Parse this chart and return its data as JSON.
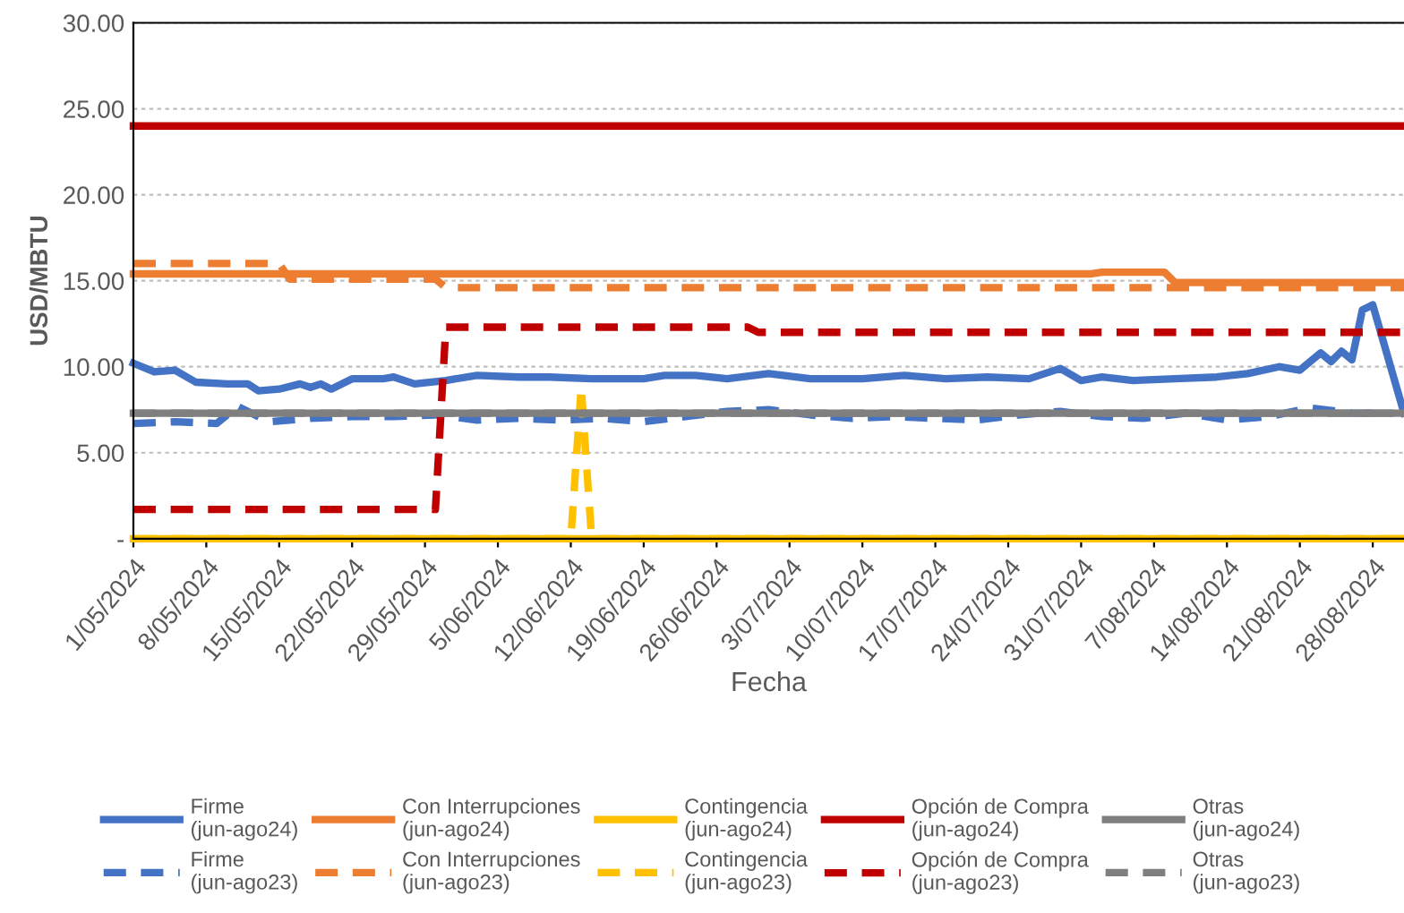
{
  "chart_data": {
    "type": "line",
    "xlabel": "Fecha",
    "ylabel": "USD/MBTU",
    "xlim": [
      "2024-05-01",
      "2024-08-31"
    ],
    "ylim": [
      0,
      30
    ],
    "xticks": [
      {
        "value": "2024-05-01",
        "label": "1/05/2024"
      },
      {
        "value": "2024-05-08",
        "label": "8/05/2024"
      },
      {
        "value": "2024-05-15",
        "label": "15/05/2024"
      },
      {
        "value": "2024-05-22",
        "label": "22/05/2024"
      },
      {
        "value": "2024-05-29",
        "label": "29/05/2024"
      },
      {
        "value": "2024-06-05",
        "label": "5/06/2024"
      },
      {
        "value": "2024-06-12",
        "label": "12/06/2024"
      },
      {
        "value": "2024-06-19",
        "label": "19/06/2024"
      },
      {
        "value": "2024-06-26",
        "label": "26/06/2024"
      },
      {
        "value": "2024-07-03",
        "label": "3/07/2024"
      },
      {
        "value": "2024-07-10",
        "label": "10/07/2024"
      },
      {
        "value": "2024-07-17",
        "label": "17/07/2024"
      },
      {
        "value": "2024-07-24",
        "label": "24/07/2024"
      },
      {
        "value": "2024-07-31",
        "label": "31/07/2024"
      },
      {
        "value": "2024-08-07",
        "label": "7/08/2024"
      },
      {
        "value": "2024-08-14",
        "label": "14/08/2024"
      },
      {
        "value": "2024-08-21",
        "label": "21/08/2024"
      },
      {
        "value": "2024-08-28",
        "label": "28/08/2024"
      }
    ],
    "yticks": [
      {
        "value": 0,
        "label": "-"
      },
      {
        "value": 5,
        "label": "5.00"
      },
      {
        "value": 10,
        "label": "10.00"
      },
      {
        "value": 15,
        "label": "15.00"
      },
      {
        "value": 20,
        "label": "20.00"
      },
      {
        "value": 25,
        "label": "25.00"
      },
      {
        "value": 30,
        "label": "30.00"
      }
    ],
    "grid": "y",
    "legend": "bottom",
    "marker": "none",
    "series": [
      {
        "name": "Firme\n(jun-ago24)",
        "color": "#4472c4",
        "line_style": "solid",
        "x": [
          "2024-05-01",
          "2024-05-03",
          "2024-05-05",
          "2024-05-07",
          "2024-05-10",
          "2024-05-12",
          "2024-05-13",
          "2024-05-15",
          "2024-05-17",
          "2024-05-18",
          "2024-05-19",
          "2024-05-20",
          "2024-05-22",
          "2024-05-25",
          "2024-05-26",
          "2024-05-28",
          "2024-05-31",
          "2024-06-03",
          "2024-06-07",
          "2024-06-10",
          "2024-06-14",
          "2024-06-19",
          "2024-06-21",
          "2024-06-24",
          "2024-06-27",
          "2024-07-01",
          "2024-07-05",
          "2024-07-10",
          "2024-07-14",
          "2024-07-18",
          "2024-07-22",
          "2024-07-26",
          "2024-07-29",
          "2024-07-31",
          "2024-08-02",
          "2024-08-05",
          "2024-08-09",
          "2024-08-13",
          "2024-08-16",
          "2024-08-19",
          "2024-08-21",
          "2024-08-23",
          "2024-08-24",
          "2024-08-25",
          "2024-08-26",
          "2024-08-27",
          "2024-08-28",
          "2024-08-31"
        ],
        "values": [
          10.2,
          9.7,
          9.8,
          9.1,
          9.0,
          9.0,
          8.6,
          8.7,
          9.0,
          8.8,
          9.0,
          8.7,
          9.3,
          9.3,
          9.4,
          9.0,
          9.2,
          9.5,
          9.4,
          9.4,
          9.3,
          9.3,
          9.5,
          9.5,
          9.3,
          9.6,
          9.3,
          9.3,
          9.5,
          9.3,
          9.4,
          9.3,
          9.9,
          9.2,
          9.4,
          9.2,
          9.3,
          9.4,
          9.6,
          10.0,
          9.8,
          10.8,
          10.3,
          10.9,
          10.4,
          13.3,
          13.6,
          7.3
        ]
      },
      {
        "name": "Firme\n(jun-ago23)",
        "color": "#4472c4",
        "line_style": "dashed",
        "x": [
          "2024-05-01",
          "2024-05-05",
          "2024-05-09",
          "2024-05-11",
          "2024-05-14",
          "2024-05-18",
          "2024-05-22",
          "2024-05-26",
          "2024-05-30",
          "2024-06-03",
          "2024-06-07",
          "2024-06-11",
          "2024-06-15",
          "2024-06-19",
          "2024-06-23",
          "2024-06-27",
          "2024-07-01",
          "2024-07-05",
          "2024-07-09",
          "2024-07-13",
          "2024-07-17",
          "2024-07-21",
          "2024-07-25",
          "2024-07-29",
          "2024-08-02",
          "2024-08-06",
          "2024-08-10",
          "2024-08-14",
          "2024-08-18",
          "2024-08-22",
          "2024-08-26",
          "2024-08-30"
        ],
        "values": [
          6.7,
          6.8,
          6.7,
          7.7,
          6.8,
          7.0,
          7.1,
          7.1,
          7.2,
          6.9,
          7.0,
          6.9,
          7.0,
          6.8,
          7.1,
          7.4,
          7.5,
          7.2,
          7.0,
          7.1,
          7.0,
          6.9,
          7.2,
          7.4,
          7.1,
          7.0,
          7.3,
          6.9,
          7.1,
          7.6,
          7.3,
          7.3
        ]
      },
      {
        "name": "Con Interrupciones\n(jun-ago24)",
        "color": "#ed7d31",
        "line_style": "solid",
        "x": [
          "2024-05-01",
          "2024-08-01",
          "2024-08-02",
          "2024-08-08",
          "2024-08-09",
          "2024-08-31"
        ],
        "values": [
          15.4,
          15.4,
          15.5,
          15.5,
          14.9,
          14.9
        ]
      },
      {
        "name": "Con Interrupciones\n(jun-ago23)",
        "color": "#ed7d31",
        "line_style": "dashed",
        "x": [
          "2024-05-01",
          "2024-05-15",
          "2024-05-16",
          "2024-05-30",
          "2024-05-31",
          "2024-08-31"
        ],
        "values": [
          16.0,
          16.0,
          15.1,
          15.1,
          14.6,
          14.6
        ]
      },
      {
        "name": "Contingencia\n(jun-ago24)",
        "color": "#ffc000",
        "line_style": "solid",
        "x": [
          "2024-05-01",
          "2024-08-31"
        ],
        "values": [
          0,
          0
        ]
      },
      {
        "name": "Contingencia\n(jun-ago23)",
        "color": "#ffc000",
        "line_style": "dashed",
        "x": [
          "2024-05-01",
          "2024-06-12",
          "2024-06-13",
          "2024-06-14",
          "2024-08-31"
        ],
        "values": [
          0,
          0,
          8.8,
          0,
          0
        ]
      },
      {
        "name": "Opción de Compra\n(jun-ago24)",
        "color": "#c00000",
        "line_style": "solid",
        "x": [
          "2024-05-01",
          "2024-08-31"
        ],
        "values": [
          24.0,
          24.0
        ]
      },
      {
        "name": "Opción de Compra\n(jun-ago23)",
        "color": "#c00000",
        "line_style": "dashed",
        "x": [
          "2024-05-01",
          "2024-05-30",
          "2024-05-31",
          "2024-06-29",
          "2024-06-30",
          "2024-08-31"
        ],
        "values": [
          1.7,
          1.7,
          12.3,
          12.3,
          12.0,
          12.0
        ]
      },
      {
        "name": "Otras\n(jun-ago24)",
        "color": "#7f7f7f",
        "line_style": "solid",
        "x": [
          "2024-05-01",
          "2024-08-31"
        ],
        "values": [
          7.3,
          7.3
        ]
      },
      {
        "name": "Otras\n(jun-ago23)",
        "color": "#7f7f7f",
        "line_style": "dashed",
        "x": [
          "2024-05-01",
          "2024-08-31"
        ],
        "values": [
          7.3,
          7.3
        ]
      }
    ]
  }
}
